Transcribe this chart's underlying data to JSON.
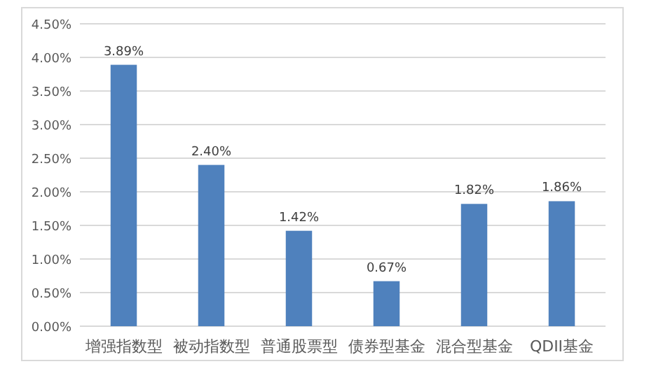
{
  "chart_data": {
    "type": "bar",
    "categories": [
      "增强指数型",
      "被动指数型",
      "普通股票型",
      "债券型基金",
      "混合型基金",
      "QDII基金"
    ],
    "values": [
      3.89,
      2.4,
      1.42,
      0.67,
      1.82,
      1.86
    ],
    "value_labels": [
      "3.89%",
      "2.40%",
      "1.42%",
      "0.67%",
      "1.82%",
      "1.86%"
    ],
    "color": "#4f81bd",
    "ylim": [
      0,
      4.5
    ],
    "yticks": [
      {
        "value": 0,
        "label": "0.00%"
      },
      {
        "value": 0.5,
        "label": "0.50%"
      },
      {
        "value": 1,
        "label": "1.00%"
      },
      {
        "value": 1.5,
        "label": "1.50%"
      },
      {
        "value": 2,
        "label": "2.00%"
      },
      {
        "value": 2.5,
        "label": "2.50%"
      },
      {
        "value": 3,
        "label": "3.00%"
      },
      {
        "value": 3.5,
        "label": "3.50%"
      },
      {
        "value": 4,
        "label": "4.00%"
      },
      {
        "value": 4.5,
        "label": "4.50%"
      }
    ],
    "grid": "y"
  }
}
